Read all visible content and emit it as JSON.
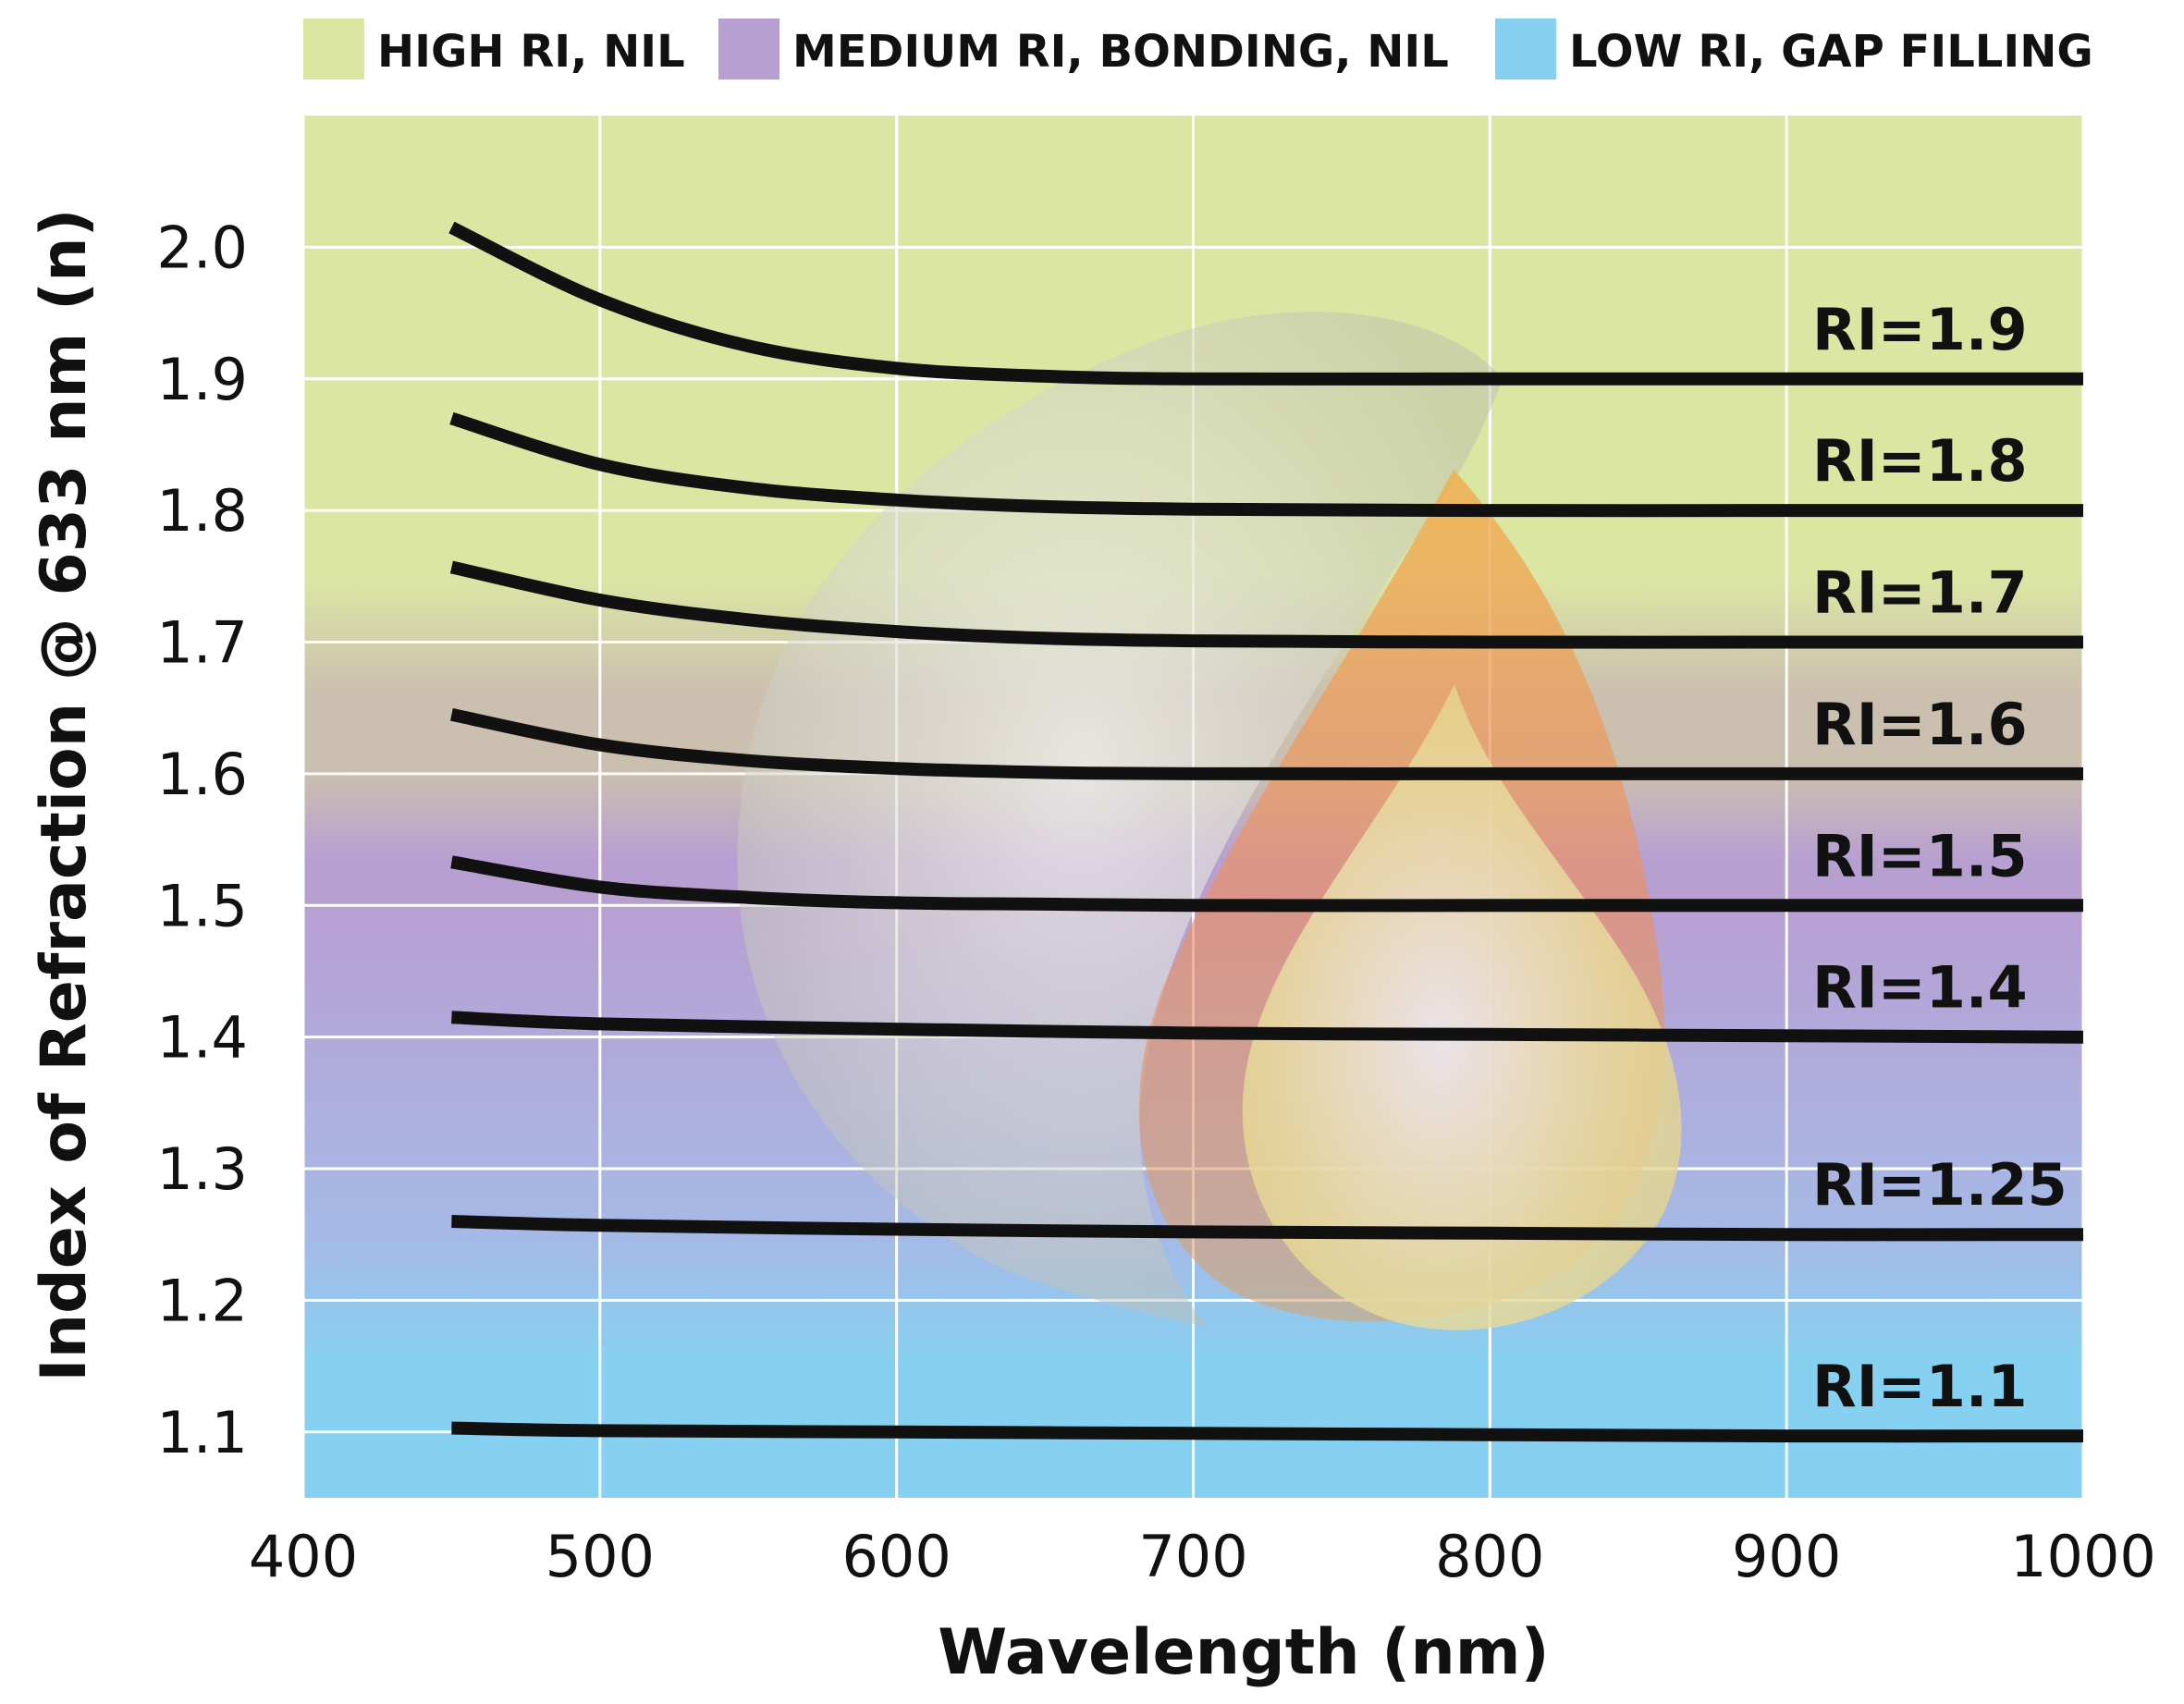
{
  "chart_data": {
    "type": "line",
    "xlabel": "Wavelength (nm)",
    "ylabel": "Index of Refraction @ 633 nm (n)",
    "xlim": [
      400,
      1000
    ],
    "ylim": [
      1.05,
      2.1
    ],
    "x_ticks": [
      "400",
      "500",
      "600",
      "700",
      "800",
      "900",
      "1000"
    ],
    "y_ticks": [
      "1.1",
      "1.2",
      "1.3",
      "1.4",
      "1.5",
      "1.6",
      "1.7",
      "1.8",
      "1.9",
      "2.0"
    ],
    "grid": true,
    "legend_position": "top",
    "legend": [
      {
        "label": "HIGH RI, NIL",
        "color": "#dbe6a3"
      },
      {
        "label": "MEDIUM RI, BONDING, NIL",
        "color": "#b89fd2"
      },
      {
        "label": "LOW RI, GAP FILLING",
        "color": "#86d1f1"
      }
    ],
    "band_colors": {
      "high": "#dbe6a3",
      "transition": "#cbbfb0",
      "medium": "#b89fd2",
      "low": "#86d1f1"
    },
    "series": [
      {
        "label": "RI=1.9",
        "x": [
          450,
          500,
          550,
          600,
          650,
          700,
          800,
          900,
          1000
        ],
        "y": [
          2.015,
          1.96,
          1.925,
          1.908,
          1.902,
          1.9,
          1.9,
          1.9,
          1.9
        ]
      },
      {
        "label": "RI=1.8",
        "x": [
          450,
          500,
          550,
          600,
          650,
          700,
          800,
          900,
          1000
        ],
        "y": [
          1.87,
          1.835,
          1.817,
          1.808,
          1.803,
          1.801,
          1.8,
          1.8,
          1.8
        ]
      },
      {
        "label": "RI=1.7",
        "x": [
          450,
          500,
          550,
          600,
          650,
          700,
          800,
          900,
          1000
        ],
        "y": [
          1.757,
          1.732,
          1.717,
          1.708,
          1.703,
          1.701,
          1.7,
          1.7,
          1.7
        ]
      },
      {
        "label": "RI=1.6",
        "x": [
          450,
          500,
          550,
          600,
          650,
          700,
          800,
          900,
          1000
        ],
        "y": [
          1.645,
          1.622,
          1.61,
          1.604,
          1.601,
          1.6,
          1.6,
          1.6,
          1.6
        ]
      },
      {
        "label": "RI=1.5",
        "x": [
          450,
          500,
          550,
          600,
          650,
          700,
          800,
          900,
          1000
        ],
        "y": [
          1.533,
          1.514,
          1.506,
          1.502,
          1.501,
          1.5,
          1.5,
          1.5,
          1.5
        ]
      },
      {
        "label": "RI=1.4",
        "x": [
          450,
          500,
          600,
          700,
          800,
          900,
          1000
        ],
        "y": [
          1.415,
          1.41,
          1.406,
          1.403,
          1.402,
          1.401,
          1.4
        ]
      },
      {
        "label": "RI=1.25",
        "x": [
          450,
          500,
          600,
          700,
          800,
          900,
          1000
        ],
        "y": [
          1.26,
          1.257,
          1.254,
          1.252,
          1.251,
          1.25,
          1.25
        ]
      },
      {
        "label": "RI=1.1",
        "x": [
          450,
          500,
          600,
          700,
          800,
          900,
          1000
        ],
        "y": [
          1.103,
          1.101,
          1.1,
          1.099,
          1.098,
          1.097,
          1.097
        ]
      }
    ],
    "line_color": "#111111"
  }
}
